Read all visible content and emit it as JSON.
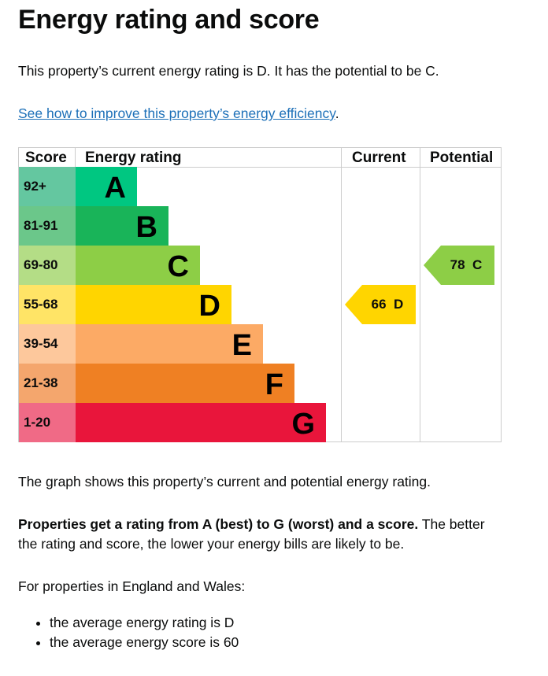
{
  "title": "Energy rating and score",
  "intro": "This property’s current energy rating is D. It has the potential to be C.",
  "improve_link": "See how to improve this property’s energy efficiency",
  "improve_link_suffix": ".",
  "chart_data": {
    "type": "table",
    "headers": {
      "score": "Score",
      "rating": "Energy rating",
      "current": "Current",
      "potential": "Potential"
    },
    "bands": [
      {
        "score": "92+",
        "letter": "A",
        "color": "#00c781",
        "score_color": "#64c7a0"
      },
      {
        "score": "81-91",
        "letter": "B",
        "color": "#19b459",
        "score_color": "#6bc78a"
      },
      {
        "score": "69-80",
        "letter": "C",
        "color": "#8dce46",
        "score_color": "#b4dd86"
      },
      {
        "score": "55-68",
        "letter": "D",
        "color": "#ffd500",
        "score_color": "#ffe466"
      },
      {
        "score": "39-54",
        "letter": "E",
        "color": "#fcaa65",
        "score_color": "#fdc89c"
      },
      {
        "score": "21-38",
        "letter": "F",
        "color": "#ef8023",
        "score_color": "#f4a66d"
      },
      {
        "score": "1-20",
        "letter": "G",
        "color": "#e9153b",
        "score_color": "#f06a86"
      }
    ],
    "current": {
      "score": 66,
      "letter": "D",
      "label": "66  D",
      "color": "#ffd500"
    },
    "potential": {
      "score": 78,
      "letter": "C",
      "label": "78  C",
      "color": "#8dce46"
    }
  },
  "graph_note": "The graph shows this property’s current and potential energy rating.",
  "ratings_bold": "Properties get a rating from A (best) to G (worst) and a score.",
  "ratings_rest": " The better the rating and score, the lower your energy bills are likely to be.",
  "england_wales": "For properties in England and Wales:",
  "averages": [
    "the average energy rating is D",
    "the average energy score is 60"
  ]
}
